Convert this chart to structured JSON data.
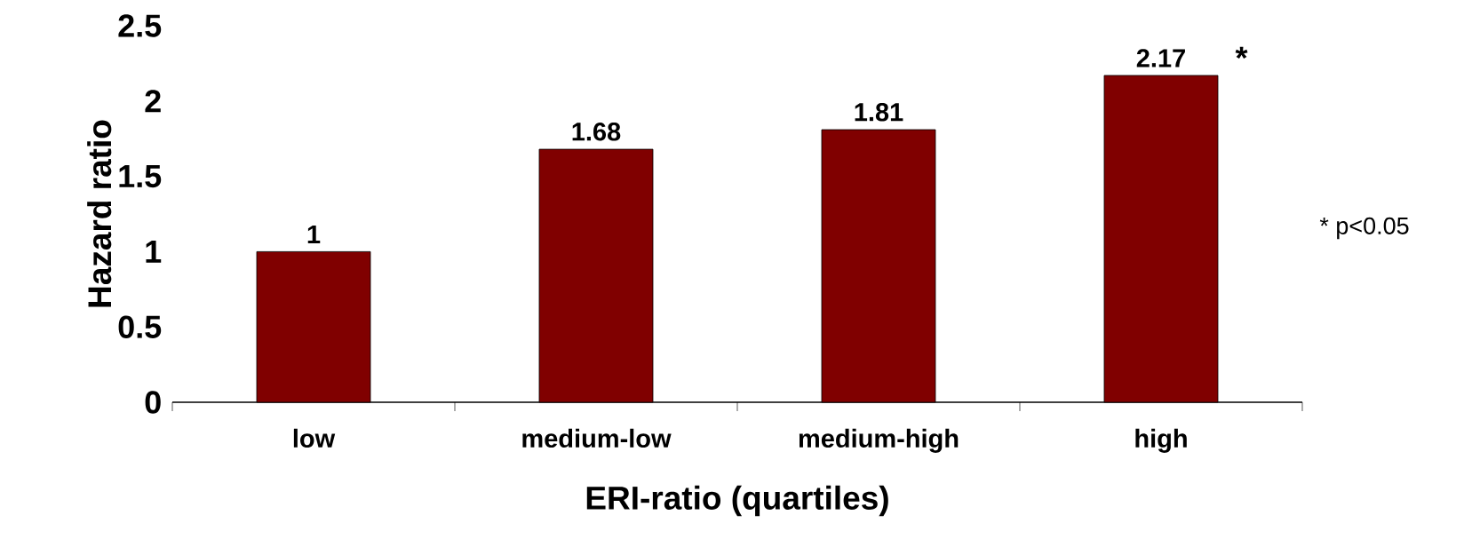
{
  "chart_data": {
    "type": "bar",
    "xlabel": "ERI-ratio (quartiles)",
    "ylabel": "Hazard ratio",
    "categories": [
      "low",
      "medium-low",
      "medium-high",
      "high"
    ],
    "values": [
      1,
      1.68,
      1.81,
      2.17
    ],
    "color": "#800000",
    "ylim": [
      0,
      2.5
    ],
    "yticks": [
      0,
      0.5,
      1,
      1.5,
      2,
      2.5
    ],
    "data_labels": true,
    "grid": false,
    "annotations": [
      {
        "text": "*",
        "x": "high",
        "y": 2.17
      },
      "* p<0.05"
    ]
  }
}
